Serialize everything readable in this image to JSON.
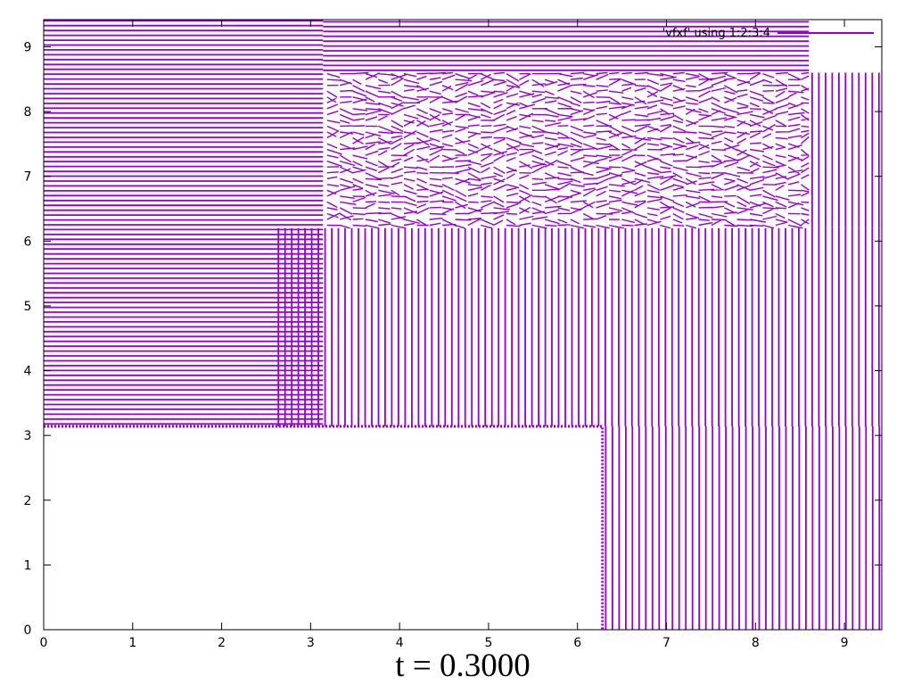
{
  "chart_data": {
    "type": "vector-field",
    "title": "t = 0.3000",
    "xlim": [
      0,
      9.42
    ],
    "ylim": [
      0,
      9.42
    ],
    "x_ticks": [
      0,
      1,
      2,
      3,
      4,
      5,
      6,
      7,
      8,
      9
    ],
    "y_ticks": [
      0,
      1,
      2,
      3,
      4,
      5,
      6,
      7,
      8,
      9
    ],
    "grid": false,
    "legend_position": "top-right",
    "series": [
      {
        "name": "'vfxf' using 1:2:3:4",
        "color": "#9400d3",
        "obstacle_step": {
          "x_max": 6.28,
          "y_max": 3.14
        },
        "regions": [
          {
            "description_key": "left-upper-horizontal-flow",
            "x_range": [
              0,
              3.14
            ],
            "y_range": [
              3.14,
              9.42
            ],
            "direction": "horizontal"
          },
          {
            "description_key": "top-band-horizontal-flow",
            "x_range": [
              3.14,
              8.6
            ],
            "y_range": [
              8.6,
              9.42
            ],
            "direction": "horizontal"
          },
          {
            "description_key": "upper-mixed-region",
            "x_range": [
              3.14,
              8.6
            ],
            "y_range": [
              6.2,
              8.6
            ],
            "direction": "mixed"
          },
          {
            "description_key": "middle-vertical-flow",
            "x_range": [
              2.6,
              9.42
            ],
            "y_range": [
              3.14,
              6.2
            ],
            "direction": "vertical"
          },
          {
            "description_key": "lower-right-vertical-flow",
            "x_range": [
              6.28,
              9.42
            ],
            "y_range": [
              0,
              3.14
            ],
            "direction": "vertical"
          },
          {
            "description_key": "right-column-vertical-flow",
            "x_range": [
              8.6,
              9.42
            ],
            "y_range": [
              6.2,
              8.6
            ],
            "direction": "vertical"
          }
        ]
      }
    ]
  }
}
